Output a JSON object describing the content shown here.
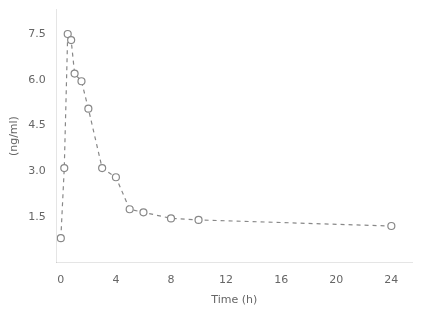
{
  "chart_data": {
    "type": "line",
    "x": [
      0,
      0.25,
      0.5,
      0.75,
      1.0,
      1.5,
      2.0,
      3.0,
      4.0,
      5.0,
      6.0,
      8.0,
      10.0,
      24.0
    ],
    "values": [
      0.8,
      3.1,
      7.5,
      7.3,
      6.2,
      5.95,
      5.05,
      3.1,
      2.8,
      1.75,
      1.65,
      1.45,
      1.4,
      1.2
    ],
    "xlabel": "Time (h)",
    "ylabel": "(ng/ml)",
    "xlim": [
      -0.3,
      25.5
    ],
    "xticks": [
      0,
      4,
      8,
      12,
      16,
      20,
      24
    ],
    "ylim": [
      0,
      8.3
    ],
    "yticks": [
      1.5,
      {
        "value": 3.0,
        "label": "3.0"
      },
      4.5,
      {
        "value": 6.0,
        "label": "6.0"
      },
      7.5
    ],
    "color": "#888888",
    "marker": "circle",
    "line_style": "dashed",
    "grid": false
  }
}
